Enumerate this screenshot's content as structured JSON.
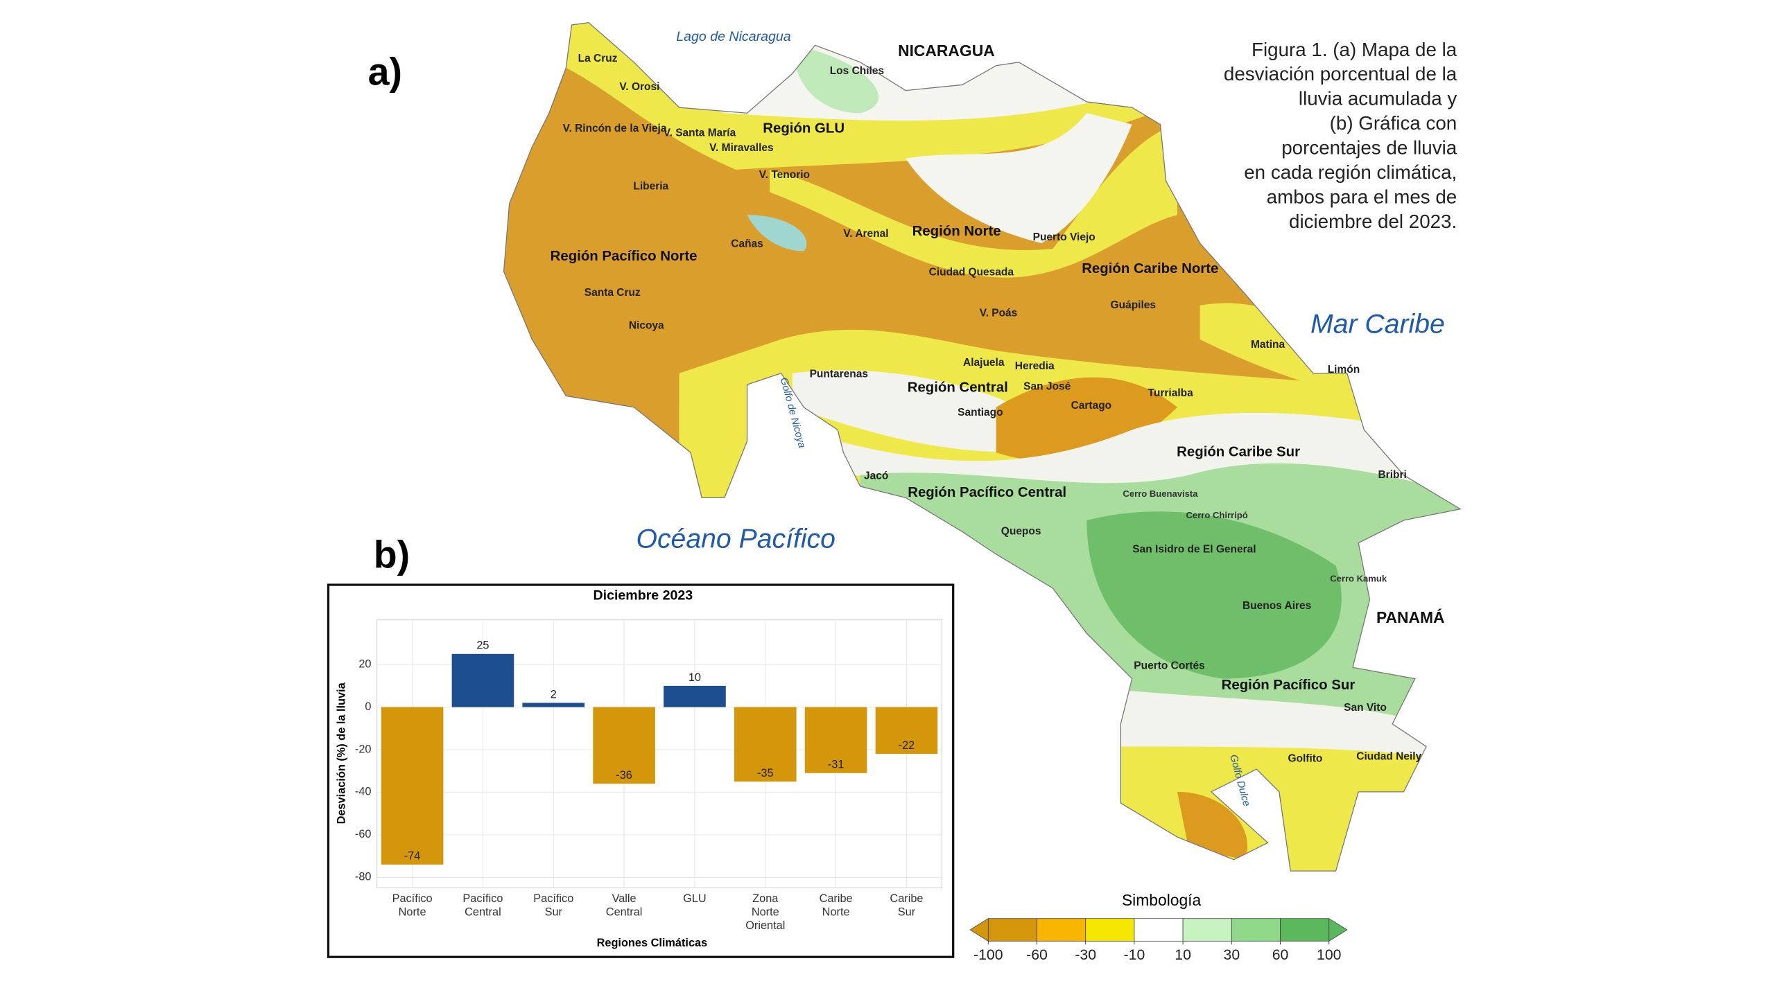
{
  "panel_labels": {
    "a": "a)",
    "b": "b)"
  },
  "caption": [
    "Figura 1. (a) Mapa de la",
    "desviación porcentual de la",
    "lluvia acumulada y",
    "(b) Gráfica con",
    "porcentajes de lluvia",
    "en cada región climática,",
    "ambos para el mes de",
    "diciembre del 2023."
  ],
  "map": {
    "labels": [
      "Lago de Nicaragua",
      "NICARAGUA",
      "La Cruz",
      "Los Chiles",
      "V. Orosi",
      "Región GLU",
      "V. Rincón de la Vieja",
      "V. Santa María",
      "V. Miravalles",
      "V. Tenorio",
      "Liberia",
      "V. Arenal",
      "Región Norte",
      "Puerto Viejo",
      "Cañas",
      "Región Pacífico Norte",
      "Ciudad Quesada",
      "Región Caribe Norte",
      "Guápiles",
      "Santa Cruz",
      "V. Poás",
      "Mar Caribe",
      "Nicoya",
      "Matina",
      "Limón",
      "Puntarenas",
      "Alajuela",
      "Heredia",
      "Turrialba",
      "San José",
      "Región Central",
      "Golfo de Nicoya",
      "Santiago",
      "Cartago",
      "Región Caribe Sur",
      "Jacó",
      "Región Pacífico Central",
      "Cerro Buenavista",
      "Bribri",
      "Quepos",
      "Océano Pacífico",
      "Cerro Chirripó",
      "San Isidro de El General",
      "Cerro Kamuk",
      "Buenos Aires",
      "PANAMÁ",
      "Puerto Cortés",
      "Región Pacífico Sur",
      "San Vito",
      "Golfito",
      "Ciudad Neily",
      "Golfo Dulce"
    ]
  },
  "chart_data": {
    "type": "bar",
    "title": "Diciembre 2023",
    "categories": [
      "Pacífico Norte",
      "Pacífico Central",
      "Pacífico Sur",
      "Valle Central",
      "GLU",
      "Zona Norte Oriental",
      "Caribe Norte",
      "Caribe Sur"
    ],
    "values": [
      -74,
      25,
      2,
      -36,
      10,
      -35,
      -31,
      -22
    ],
    "colors": [
      "#d4960a",
      "#1d4e8f",
      "#1d4e8f",
      "#d4960a",
      "#1d4e8f",
      "#d4960a",
      "#d4960a",
      "#d4960a"
    ],
    "x_label": "Regiones Climáticas",
    "y_label": "Desviación (%) de la lluvia",
    "ylim": [
      -85,
      41
    ],
    "yticks": [
      20,
      0,
      -20,
      -40,
      -60,
      -80
    ],
    "grid": true
  },
  "colorbar": {
    "title": "Simbología",
    "ticks": [
      -100,
      -60,
      -30,
      -10,
      10,
      30,
      60,
      100
    ],
    "colors": [
      "#d4960a",
      "#f7b500",
      "#f6e700",
      "#ffffff",
      "#c6f3bf",
      "#8fd88a",
      "#5cb85c"
    ]
  }
}
